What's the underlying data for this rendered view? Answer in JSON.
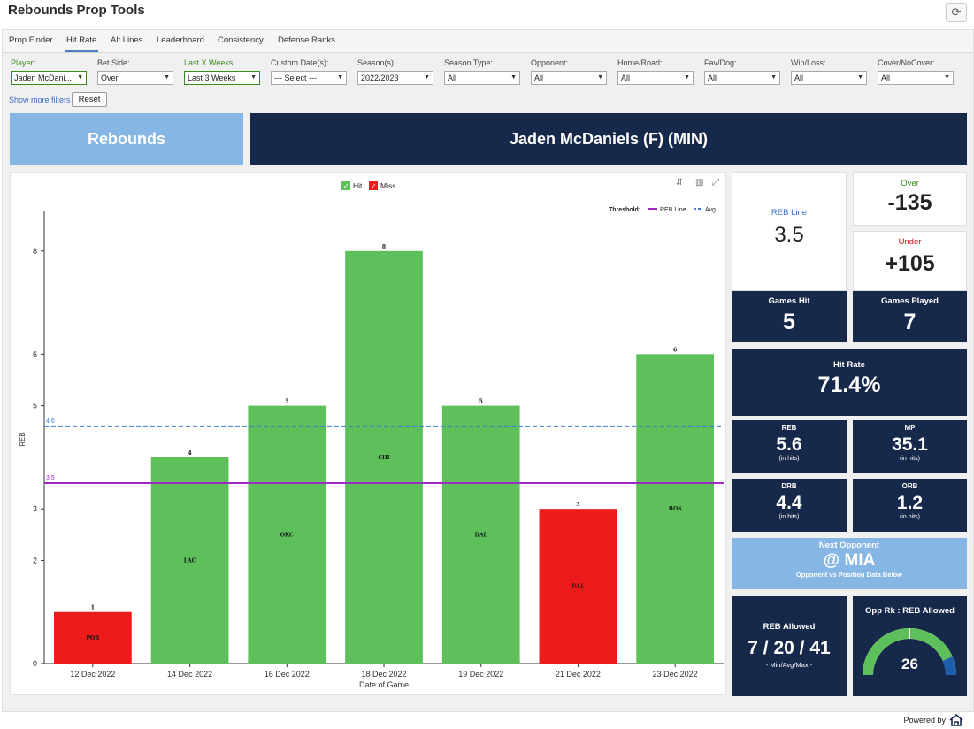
{
  "app_title": "Rebounds Prop Tools",
  "tabs": [
    "Prop Finder",
    "Hit Rate",
    "Alt Lines",
    "Leaderboard",
    "Consistency",
    "Defense Ranks"
  ],
  "filters": [
    {
      "label": "Player:",
      "value": "Jaden McDani..."
    },
    {
      "label": "Bet Side:",
      "value": "Over"
    },
    {
      "label": "Last X Weeks:",
      "value": "Last 3 Weeks"
    },
    {
      "label": "Custom Date(s):",
      "value": "--- Select ---"
    },
    {
      "label": "Season(s):",
      "value": "2022/2023"
    },
    {
      "label": "Season Type:",
      "value": "All"
    },
    {
      "label": "Opponent:",
      "value": "All"
    },
    {
      "label": "Home/Road:",
      "value": "All"
    },
    {
      "label": "Fav/Dog:",
      "value": "All"
    },
    {
      "label": "Win/Loss:",
      "value": "All"
    },
    {
      "label": "Cover/NoCover:",
      "value": "All"
    }
  ],
  "show_more": "Show more filters",
  "reset": "Reset",
  "stat_banner": "Rebounds",
  "player_banner": "Jaden McDaniels (F) (MIN)",
  "chart_data": {
    "type": "bar",
    "categories": [
      "12 Dec 2022",
      "14 Dec 2022",
      "16 Dec 2022",
      "18 Dec 2022",
      "19 Dec 2022",
      "21 Dec 2022",
      "23 Dec 2022"
    ],
    "values": [
      1,
      4,
      5,
      8,
      5,
      3,
      6
    ],
    "opponents": [
      "POR",
      "LAC",
      "OKC",
      "CHI",
      "DAL",
      "DAL",
      "BOS"
    ],
    "result": [
      "miss",
      "hit",
      "hit",
      "hit",
      "hit",
      "miss",
      "hit"
    ],
    "xlabel": "Date of Game",
    "ylabel": "REB",
    "ylim": [
      0,
      8.7
    ],
    "yticks": [
      "0",
      "2",
      "3",
      "5",
      "6",
      "8"
    ],
    "legend": [
      {
        "name": "Hit",
        "color": "#5ec05b"
      },
      {
        "name": "Miss",
        "color": "#ec1c1c"
      }
    ],
    "threshold_label": "Threshold:",
    "lines": [
      {
        "name": "REB Line",
        "value": 3.5,
        "label": "3.5",
        "color": "#9b2bc1"
      },
      {
        "name": "Avg",
        "value": 4.6,
        "label": "4.6",
        "color": "#3b7fd0"
      }
    ],
    "grid": false
  },
  "tiles": {
    "reb_line": {
      "title": "REB Line",
      "value": "3.5"
    },
    "over": {
      "title": "Over",
      "value": "-135"
    },
    "under": {
      "title": "Under",
      "value": "+105"
    },
    "games_hit": {
      "title": "Games Hit",
      "value": "5"
    },
    "games_played": {
      "title": "Games Played",
      "value": "7"
    },
    "hit_rate": {
      "title": "Hit Rate",
      "value": "71.4%"
    },
    "reb": {
      "title": "REB",
      "value": "5.6",
      "sub": "(in hits)"
    },
    "mp": {
      "title": "MP",
      "value": "35.1",
      "sub": "(in hits)"
    },
    "drb": {
      "title": "DRB",
      "value": "4.4",
      "sub": "(in hits)"
    },
    "orb": {
      "title": "ORB",
      "value": "1.2",
      "sub": "(in hits)"
    },
    "next_opp": {
      "title": "Next Opponent",
      "value": "@ MIA",
      "sub": "Opponent vs Position Data Below"
    },
    "reb_allowed": {
      "title": "REB Allowed",
      "value": "7 / 20 / 41",
      "sub": "- Min/Avg/Max -"
    },
    "opp_rank": {
      "title": "Opp Rk : REB Allowed",
      "value": "26",
      "gauge_fraction": 0.87
    }
  },
  "colors": {
    "navy": "#17294a",
    "light_blue": "#86b6e4",
    "green": "#3a8a1e",
    "red": "#cc1111"
  },
  "powered_by": "Powered by"
}
